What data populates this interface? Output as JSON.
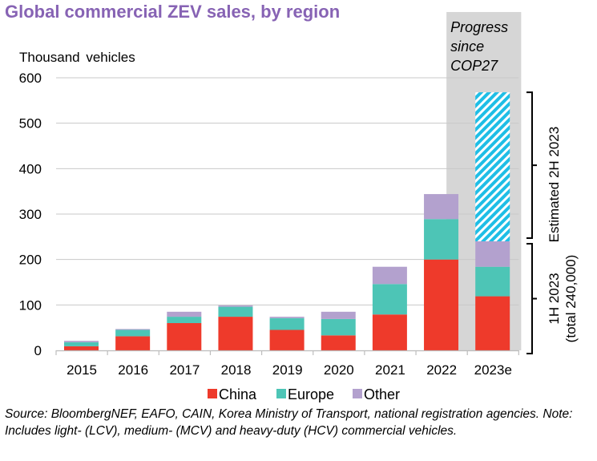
{
  "chart_data": {
    "type": "bar",
    "stacked": true,
    "title": "Global commercial ZEV sales, by region",
    "ylabel": "Thousand  vehicles",
    "xlabel": "",
    "ylim": [
      0,
      600
    ],
    "yticks": [
      "0",
      "100",
      "200",
      "300",
      "400",
      "500",
      "600"
    ],
    "ytick_values": [
      0,
      100,
      200,
      300,
      400,
      500,
      600
    ],
    "grid": true,
    "categories": [
      "2015",
      "2016",
      "2017",
      "2018",
      "2019",
      "2020",
      "2021",
      "2022",
      "2023e"
    ],
    "series": [
      {
        "name": "China",
        "color": "#EE3A2B",
        "values": [
          9,
          31,
          60,
          74,
          45,
          33,
          79,
          200,
          119
        ]
      },
      {
        "name": "Europe",
        "color": "#4DC5B6",
        "values": [
          9,
          14,
          14,
          22,
          26,
          36,
          67,
          89,
          65
        ]
      },
      {
        "name": "Other",
        "color": "#B3A1CE",
        "values": [
          3,
          2,
          11,
          3,
          3,
          16,
          38,
          55,
          56
        ]
      }
    ],
    "estimated": {
      "category": "2023e",
      "name": "Estimated 2H 2023",
      "from": 240,
      "to": 568,
      "color": "#1EBEE6",
      "pattern": "hatched"
    },
    "highlight_band": {
      "from_category": "2022",
      "to_category": "2023e",
      "label_lines": [
        "Progress",
        "since",
        "COP27"
      ],
      "color": "#D6D6D6"
    },
    "annotations": [
      {
        "text": "Estimated 2H 2023",
        "from": 240,
        "to": 568
      },
      {
        "text_lines": [
          "1H 2023",
          "(total 240,000)"
        ],
        "from": 0,
        "to": 240
      }
    ],
    "legend": {
      "position": "bottom",
      "entries": [
        "China",
        "Europe",
        "Other"
      ]
    }
  },
  "source_note": "Source: BloombergNEF, EAFO, CAIN, Korea Ministry of Transport, national registration agencies. Note: Includes light- (LCV), medium- (MCV) and heavy-duty (HCV) commercial vehicles."
}
